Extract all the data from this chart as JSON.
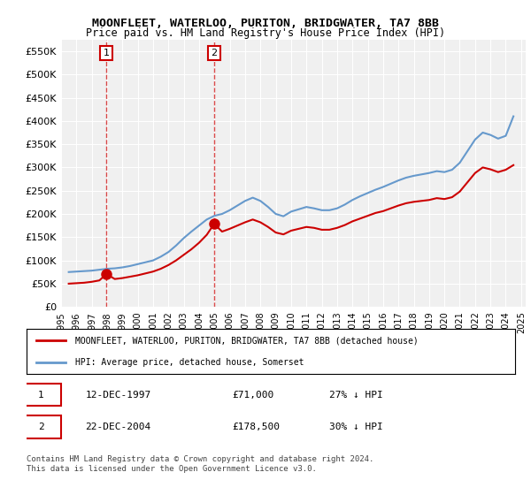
{
  "title": "MOONFLEET, WATERLOO, PURITON, BRIDGWATER, TA7 8BB",
  "subtitle": "Price paid vs. HM Land Registry's House Price Index (HPI)",
  "xlabel": "",
  "ylabel": "",
  "ylim": [
    0,
    575000
  ],
  "yticks": [
    0,
    50000,
    100000,
    150000,
    200000,
    250000,
    300000,
    350000,
    400000,
    450000,
    500000,
    550000
  ],
  "ytick_labels": [
    "£0",
    "£50K",
    "£100K",
    "£150K",
    "£200K",
    "£250K",
    "£300K",
    "£350K",
    "£400K",
    "£450K",
    "£500K",
    "£550K"
  ],
  "background_color": "#ffffff",
  "plot_bg_color": "#f0f0f0",
  "grid_color": "#ffffff",
  "sale1_date": 1997.96,
  "sale1_price": 71000,
  "sale1_label": "1",
  "sale2_date": 2004.98,
  "sale2_price": 178500,
  "sale2_label": "2",
  "vline1_x": 1997.96,
  "vline2_x": 2004.98,
  "legend_line1": "MOONFLEET, WATERLOO, PURITON, BRIDGWATER, TA7 8BB (detached house)",
  "legend_line2": "HPI: Average price, detached house, Somerset",
  "table_row1": [
    "1",
    "12-DEC-1997",
    "£71,000",
    "27% ↓ HPI"
  ],
  "table_row2": [
    "2",
    "22-DEC-2004",
    "£178,500",
    "30% ↓ HPI"
  ],
  "footer": "Contains HM Land Registry data © Crown copyright and database right 2024.\nThis data is licensed under the Open Government Licence v3.0.",
  "red_color": "#cc0000",
  "blue_color": "#6699cc",
  "hpi_data": {
    "years": [
      1995.5,
      1996.0,
      1996.5,
      1997.0,
      1997.5,
      1998.0,
      1998.5,
      1999.0,
      1999.5,
      2000.0,
      2000.5,
      2001.0,
      2001.5,
      2002.0,
      2002.5,
      2003.0,
      2003.5,
      2004.0,
      2004.5,
      2005.0,
      2005.5,
      2006.0,
      2006.5,
      2007.0,
      2007.5,
      2008.0,
      2008.5,
      2009.0,
      2009.5,
      2010.0,
      2010.5,
      2011.0,
      2011.5,
      2012.0,
      2012.5,
      2013.0,
      2013.5,
      2014.0,
      2014.5,
      2015.0,
      2015.5,
      2016.0,
      2016.5,
      2017.0,
      2017.5,
      2018.0,
      2018.5,
      2019.0,
      2019.5,
      2020.0,
      2020.5,
      2021.0,
      2021.5,
      2022.0,
      2022.5,
      2023.0,
      2023.5,
      2024.0,
      2024.5
    ],
    "values": [
      75000,
      76000,
      77000,
      78000,
      80000,
      82000,
      83000,
      85000,
      88000,
      92000,
      96000,
      100000,
      108000,
      118000,
      132000,
      148000,
      162000,
      175000,
      188000,
      196000,
      200000,
      208000,
      218000,
      228000,
      235000,
      228000,
      215000,
      200000,
      195000,
      205000,
      210000,
      215000,
      212000,
      208000,
      208000,
      212000,
      220000,
      230000,
      238000,
      245000,
      252000,
      258000,
      265000,
      272000,
      278000,
      282000,
      285000,
      288000,
      292000,
      290000,
      295000,
      310000,
      335000,
      360000,
      375000,
      370000,
      362000,
      368000,
      410000
    ]
  },
  "sold_data": {
    "years": [
      1995.5,
      1996.0,
      1996.5,
      1997.0,
      1997.5,
      1997.96,
      1998.5,
      1999.0,
      1999.5,
      2000.0,
      2000.5,
      2001.0,
      2001.5,
      2002.0,
      2002.5,
      2003.0,
      2003.5,
      2004.0,
      2004.5,
      2004.98,
      2005.5,
      2006.0,
      2006.5,
      2007.0,
      2007.5,
      2008.0,
      2008.5,
      2009.0,
      2009.5,
      2010.0,
      2010.5,
      2011.0,
      2011.5,
      2012.0,
      2012.5,
      2013.0,
      2013.5,
      2014.0,
      2014.5,
      2015.0,
      2015.5,
      2016.0,
      2016.5,
      2017.0,
      2017.5,
      2018.0,
      2018.5,
      2019.0,
      2019.5,
      2020.0,
      2020.5,
      2021.0,
      2021.5,
      2022.0,
      2022.5,
      2023.0,
      2023.5,
      2024.0,
      2024.5
    ],
    "values": [
      50000,
      51000,
      52000,
      54000,
      57000,
      71000,
      60000,
      62000,
      65000,
      68000,
      72000,
      76000,
      82000,
      90000,
      100000,
      112000,
      124000,
      138000,
      155000,
      178500,
      162000,
      168000,
      175000,
      182000,
      188000,
      182000,
      172000,
      160000,
      156000,
      164000,
      168000,
      172000,
      170000,
      166000,
      166000,
      170000,
      176000,
      184000,
      190000,
      196000,
      202000,
      206000,
      212000,
      218000,
      223000,
      226000,
      228000,
      230000,
      234000,
      232000,
      236000,
      248000,
      268000,
      288000,
      300000,
      296000,
      290000,
      295000,
      305000
    ]
  },
  "xtick_years": [
    "1995",
    "1996",
    "1997",
    "1998",
    "1999",
    "2000",
    "2001",
    "2002",
    "2003",
    "2004",
    "2005",
    "2006",
    "2007",
    "2008",
    "2009",
    "2010",
    "2011",
    "2012",
    "2013",
    "2014",
    "2015",
    "2016",
    "2017",
    "2018",
    "2019",
    "2020",
    "2021",
    "2022",
    "2023",
    "2024",
    "2025"
  ],
  "xmin": 1995.0,
  "xmax": 2025.3
}
